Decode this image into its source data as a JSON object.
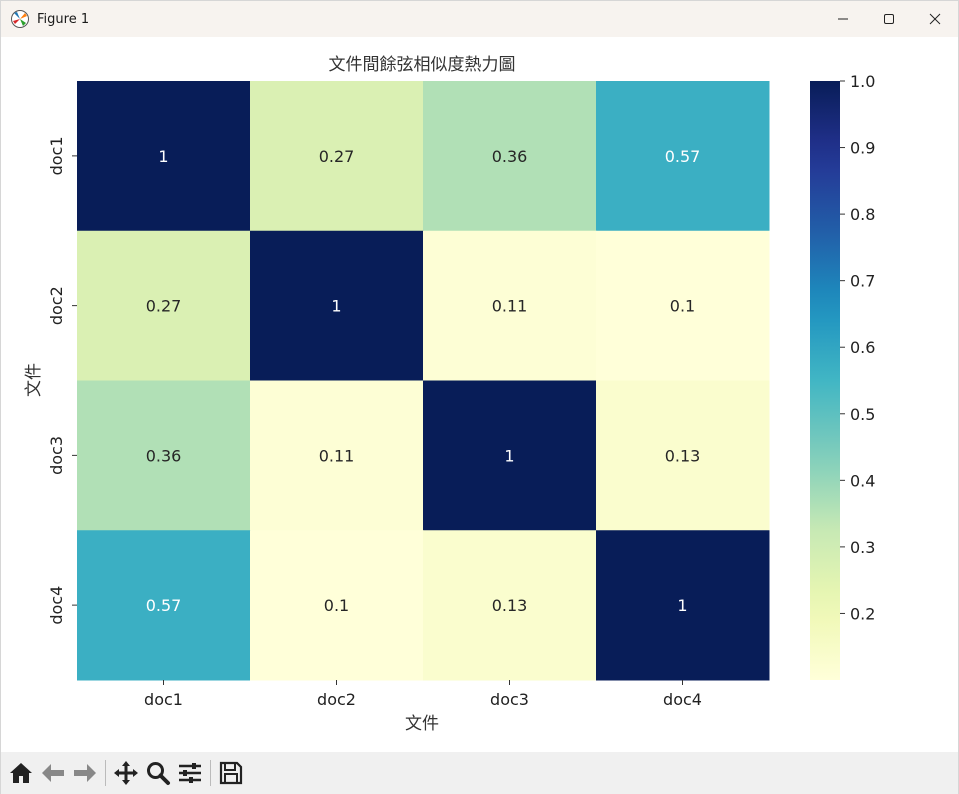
{
  "window": {
    "title": "Figure 1",
    "controls": [
      "minimize-icon",
      "maximize-icon",
      "close-icon"
    ]
  },
  "toolbar": {
    "tools": [
      "home-icon",
      "back-arrow-icon",
      "forward-arrow-icon",
      "pan-icon",
      "zoom-icon",
      "configure-subplots-icon",
      "save-icon"
    ]
  },
  "chart_data": {
    "type": "heatmap",
    "title": "文件間餘弦相似度熱力圖",
    "xlabel": "文件",
    "ylabel": "文件",
    "x_categories": [
      "doc1",
      "doc2",
      "doc3",
      "doc4"
    ],
    "y_categories": [
      "doc1",
      "doc2",
      "doc3",
      "doc4"
    ],
    "values": [
      [
        1,
        0.27,
        0.36,
        0.57
      ],
      [
        0.27,
        1,
        0.11,
        0.1
      ],
      [
        0.36,
        0.11,
        1,
        0.13
      ],
      [
        0.57,
        0.1,
        0.13,
        1
      ]
    ],
    "annotations": [
      [
        "1",
        "0.27",
        "0.36",
        "0.57"
      ],
      [
        "0.27",
        "1",
        "0.11",
        "0.1"
      ],
      [
        "0.36",
        "0.11",
        "1",
        "0.13"
      ],
      [
        "0.57",
        "0.1",
        "0.13",
        "1"
      ]
    ],
    "colormap": "YlGnBu",
    "colorbar": {
      "range": [
        0.1,
        1.0
      ],
      "ticks": [
        "0.2",
        "0.3",
        "0.4",
        "0.5",
        "0.6",
        "0.7",
        "0.8",
        "0.9",
        "1.0"
      ],
      "position": "right"
    },
    "grid": false
  }
}
